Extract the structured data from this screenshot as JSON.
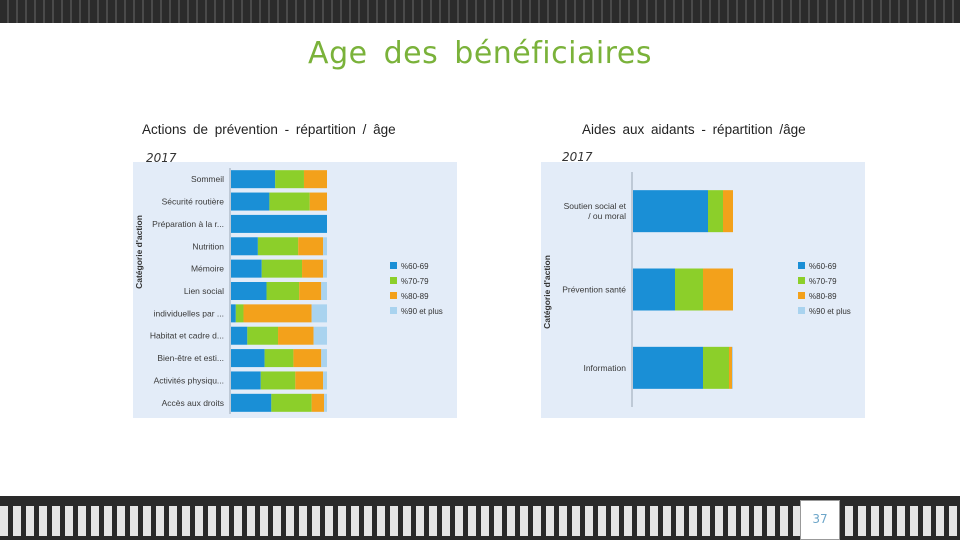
{
  "slide": {
    "title": "Age des bénéficiaires",
    "page_number": "37"
  },
  "colors": {
    "age_60_69": "#1a8fd6",
    "age_70_79": "#8ccf2a",
    "age_80_89": "#f3a11b",
    "age_90_plus": "#a9d3ef",
    "panel_bg": "#e3ecf8",
    "title_green": "#7ab23a"
  },
  "left_chart": {
    "subtitle": "Actions de prévention - répartition / âge",
    "year": "2017"
  },
  "right_chart": {
    "subtitle": "Aides aux aidants - répartition /âge",
    "year": "2017"
  },
  "chart_data": [
    {
      "type": "bar",
      "orientation": "horizontal",
      "stacked": true,
      "ylabel": "Catégorie d'action",
      "categories": [
        "Sommeil",
        "Sécurité routière",
        "Préparation à la r...",
        "Nutrition",
        "Mémoire",
        "Lien social",
        "individuelles par ...",
        "Habitat et cadre d...",
        "Bien-être et esti...",
        "Activités physiqu...",
        "Accès aux droits"
      ],
      "series": [
        {
          "name": "%60-69",
          "values": [
            46,
            40,
            100,
            28,
            32,
            37,
            5,
            17,
            35,
            31,
            42
          ]
        },
        {
          "name": "%70-79",
          "values": [
            30,
            42,
            0,
            42,
            42,
            34,
            8,
            32,
            30,
            36,
            42
          ]
        },
        {
          "name": "%80-89",
          "values": [
            24,
            18,
            0,
            26,
            22,
            23,
            71,
            37,
            29,
            29,
            13
          ]
        },
        {
          "name": "%90 et plus",
          "values": [
            0,
            0,
            0,
            4,
            4,
            6,
            16,
            14,
            6,
            4,
            3
          ]
        }
      ],
      "legend": "right"
    },
    {
      "type": "bar",
      "orientation": "horizontal",
      "stacked": true,
      "ylabel": "Catégorie d'action",
      "categories": [
        "Soutien social et / ou moral",
        "Prévention santé",
        "Information"
      ],
      "series": [
        {
          "name": "%60-69",
          "values": [
            75,
            42,
            70
          ]
        },
        {
          "name": "%70-79",
          "values": [
            15,
            28,
            26
          ]
        },
        {
          "name": "%80-89",
          "values": [
            10,
            30,
            3
          ]
        },
        {
          "name": "%90 et plus",
          "values": [
            0,
            0,
            1
          ]
        }
      ],
      "legend": "right"
    }
  ]
}
